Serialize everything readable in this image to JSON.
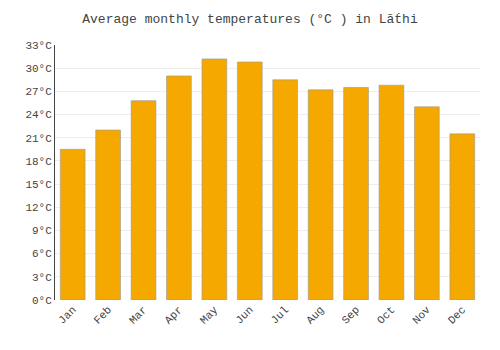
{
  "chart_data": {
    "type": "bar",
    "title": "Average monthly temperatures (°C ) in Lāṫhi",
    "categories": [
      "Jan",
      "Feb",
      "Mar",
      "Apr",
      "May",
      "Jun",
      "Jul",
      "Aug",
      "Sep",
      "Oct",
      "Nov",
      "Dec"
    ],
    "values": [
      19.5,
      22.0,
      25.8,
      29.0,
      31.2,
      30.8,
      28.5,
      27.2,
      27.5,
      27.8,
      25.0,
      21.5
    ],
    "color": "#F5A800",
    "ylim": [
      0,
      33
    ],
    "yticks": [
      {
        "value": 0,
        "label": "0°C"
      },
      {
        "value": 3,
        "label": "3°C"
      },
      {
        "value": 6,
        "label": "6°C"
      },
      {
        "value": 9,
        "label": "9°C"
      },
      {
        "value": 12,
        "label": "12°C"
      },
      {
        "value": 15,
        "label": "15°C"
      },
      {
        "value": 18,
        "label": "18°C"
      },
      {
        "value": 21,
        "label": "21°C"
      },
      {
        "value": 24,
        "label": "24°C"
      },
      {
        "value": 27,
        "label": "27°C"
      },
      {
        "value": 30,
        "label": "30°C"
      },
      {
        "value": 33,
        "label": "33°C"
      }
    ],
    "grid": true
  }
}
